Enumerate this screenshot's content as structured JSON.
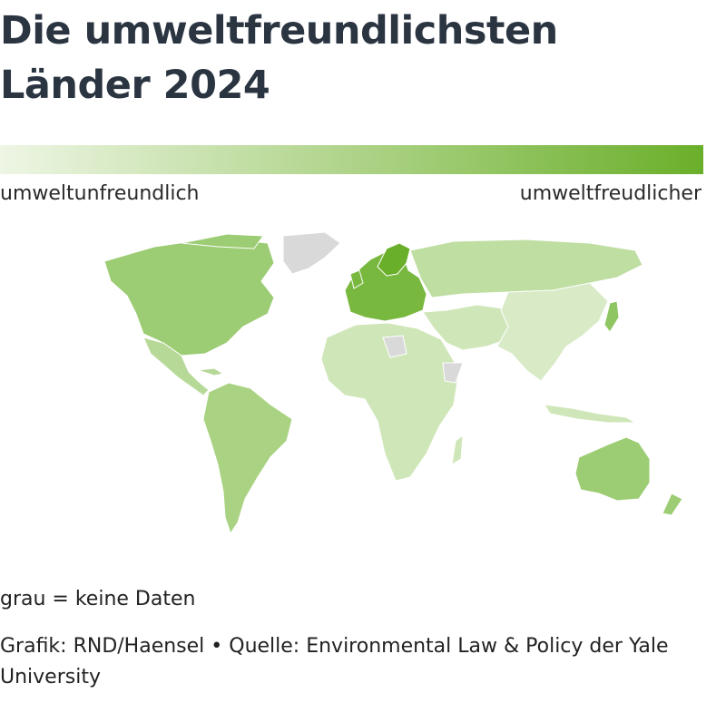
{
  "title": "Die umweltfreundlichsten Länder 2024",
  "legend": {
    "low_label": "umweltunfreundlich",
    "high_label": "umweltfreudlicher",
    "colors": [
      "#eef6e4",
      "#a8d080",
      "#6aaf2a"
    ]
  },
  "map": {
    "no_data_color": "#d9d9d9",
    "country_groups": [
      {
        "region": "Europa",
        "level": 0.95,
        "color": "#79b83f"
      },
      {
        "region": "Nordamerika",
        "level": 0.7,
        "color": "#9ccc73"
      },
      {
        "region": "Australien und Neuseeland",
        "level": 0.7,
        "color": "#9ccc73"
      },
      {
        "region": "Südamerika",
        "level": 0.6,
        "color": "#a9d382"
      },
      {
        "region": "Russland",
        "level": 0.45,
        "color": "#bfdea2"
      },
      {
        "region": "Afrika",
        "level": 0.3,
        "color": "#cfe6b8"
      },
      {
        "region": "Asien",
        "level": 0.25,
        "color": "#d8eac6"
      },
      {
        "region": "Japan",
        "level": 0.8,
        "color": "#8fc562"
      }
    ]
  },
  "note": "grau = keine Daten",
  "credit": "Grafik: RND/Haensel • Quelle: Environmental Law & Policy der Yale University"
}
